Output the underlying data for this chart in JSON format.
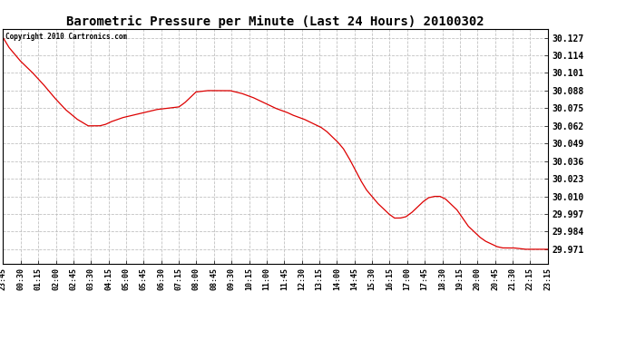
{
  "title": "Barometric Pressure per Minute (Last 24 Hours) 20100302",
  "copyright": "Copyright 2010 Cartronics.com",
  "line_color": "#dd0000",
  "background_color": "#ffffff",
  "plot_bg_color": "#ffffff",
  "grid_color": "#bbbbbb",
  "yticks": [
    29.971,
    29.984,
    29.997,
    30.01,
    30.023,
    30.036,
    30.049,
    30.062,
    30.075,
    30.088,
    30.101,
    30.114,
    30.127
  ],
  "ylim": [
    29.9605,
    30.1335
  ],
  "xtick_labels": [
    "23:45",
    "00:30",
    "01:15",
    "02:00",
    "02:45",
    "03:30",
    "04:15",
    "05:00",
    "05:45",
    "06:30",
    "07:15",
    "08:00",
    "08:45",
    "09:30",
    "10:15",
    "11:00",
    "11:45",
    "12:30",
    "13:15",
    "14:00",
    "14:45",
    "15:30",
    "16:15",
    "17:00",
    "17:45",
    "18:30",
    "19:15",
    "20:00",
    "20:45",
    "21:30",
    "22:15",
    "23:15"
  ],
  "waypoints_x": [
    0,
    15,
    45,
    75,
    105,
    135,
    165,
    195,
    225,
    255,
    270,
    285,
    315,
    345,
    375,
    405,
    435,
    465,
    480,
    495,
    510,
    540,
    570,
    600,
    630,
    660,
    675,
    720,
    750,
    765,
    795,
    810,
    840,
    855,
    870,
    885,
    900,
    915,
    930,
    945,
    960,
    975,
    990,
    1005,
    1020,
    1035,
    1050,
    1065,
    1080,
    1095,
    1110,
    1125,
    1140,
    1155,
    1170,
    1185,
    1200,
    1215,
    1230,
    1245,
    1260,
    1275,
    1290,
    1305,
    1320,
    1350,
    1380,
    1410,
    1440
  ],
  "waypoints_y": [
    30.127,
    30.12,
    30.11,
    30.102,
    30.093,
    30.083,
    30.074,
    30.067,
    30.062,
    30.062,
    30.063,
    30.065,
    30.068,
    30.07,
    30.072,
    30.074,
    30.075,
    30.076,
    30.079,
    30.083,
    30.087,
    30.088,
    30.088,
    30.088,
    30.086,
    30.083,
    30.081,
    30.075,
    30.072,
    30.07,
    30.067,
    30.065,
    30.061,
    30.058,
    30.054,
    30.05,
    30.045,
    30.038,
    30.03,
    30.022,
    30.015,
    30.01,
    30.005,
    30.001,
    29.997,
    29.994,
    29.994,
    29.995,
    29.998,
    30.002,
    30.006,
    30.009,
    30.01,
    30.01,
    30.008,
    30.004,
    30.0,
    29.994,
    29.988,
    29.984,
    29.98,
    29.977,
    29.975,
    29.973,
    29.972,
    29.972,
    29.971,
    29.971,
    29.971
  ]
}
